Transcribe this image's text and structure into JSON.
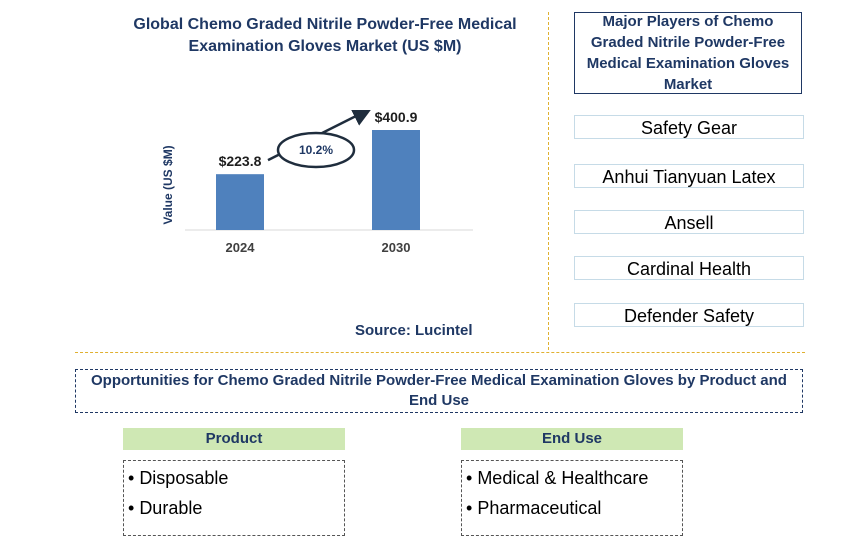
{
  "chart_data": {
    "type": "bar",
    "title": "Global Chemo Graded Nitrile Powder-Free Medical Examination Gloves  Market (US $M)",
    "categories": [
      "2024",
      "2030"
    ],
    "values": [
      223.8,
      400.9
    ],
    "value_labels": [
      "$223.8",
      "$400.9"
    ],
    "ylabel": "Value (US $M)",
    "xlabel": "",
    "ylim": [
      0,
      450
    ],
    "grid": false,
    "cagr_label": "10.2%",
    "bar_color": "#4f81bd"
  },
  "source": "Source: Lucintel",
  "players": {
    "title": "Major Players of Chemo Graded Nitrile Powder-Free Medical Examination Gloves Market",
    "items": [
      "Safety Gear",
      "Anhui Tianyuan Latex",
      "Ansell",
      "Cardinal Health",
      "Defender Safety"
    ]
  },
  "opportunities": {
    "title": "Opportunities for Chemo Graded Nitrile Powder-Free Medical Examination Gloves  by Product and End Use",
    "product": {
      "heading": "Product",
      "items": [
        "Disposable",
        "Durable"
      ]
    },
    "end_use": {
      "heading": "End Use",
      "items": [
        "Medical & Healthcare",
        "Pharmaceutical"
      ]
    }
  },
  "colors": {
    "title_navy": "#1f3864",
    "divider_gold": "#e0b030",
    "segment_green": "#cfe8b4"
  }
}
